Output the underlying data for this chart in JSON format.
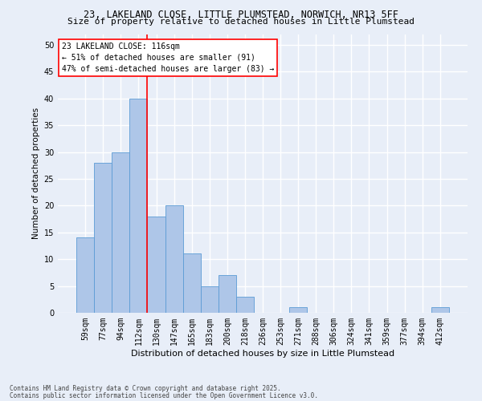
{
  "title1": "23, LAKELAND CLOSE, LITTLE PLUMSTEAD, NORWICH, NR13 5FF",
  "title2": "Size of property relative to detached houses in Little Plumstead",
  "xlabel": "Distribution of detached houses by size in Little Plumstead",
  "ylabel": "Number of detached properties",
  "bins": [
    "59sqm",
    "77sqm",
    "94sqm",
    "112sqm",
    "130sqm",
    "147sqm",
    "165sqm",
    "183sqm",
    "200sqm",
    "218sqm",
    "236sqm",
    "253sqm",
    "271sqm",
    "288sqm",
    "306sqm",
    "324sqm",
    "341sqm",
    "359sqm",
    "377sqm",
    "394sqm",
    "412sqm"
  ],
  "counts": [
    14,
    28,
    30,
    40,
    18,
    20,
    11,
    5,
    7,
    3,
    0,
    0,
    1,
    0,
    0,
    0,
    0,
    0,
    0,
    0,
    1
  ],
  "bar_color": "#aec6e8",
  "bar_edge_color": "#5b9bd5",
  "vline_color": "red",
  "vline_x": 3.5,
  "annotation_text": "23 LAKELAND CLOSE: 116sqm\n← 51% of detached houses are smaller (91)\n47% of semi-detached houses are larger (83) →",
  "annotation_fontsize": 7,
  "annotation_box_color": "white",
  "annotation_box_edge": "red",
  "footer1": "Contains HM Land Registry data © Crown copyright and database right 2025.",
  "footer2": "Contains public sector information licensed under the Open Government Licence v3.0.",
  "ylim": [
    0,
    52
  ],
  "yticks": [
    0,
    5,
    10,
    15,
    20,
    25,
    30,
    35,
    40,
    45,
    50
  ],
  "bg_color": "#e8eef8",
  "grid_color": "white",
  "title_fontsize": 8.5,
  "title2_fontsize": 8,
  "xlabel_fontsize": 8,
  "ylabel_fontsize": 7.5,
  "tick_fontsize": 7,
  "footer_fontsize": 5.5
}
